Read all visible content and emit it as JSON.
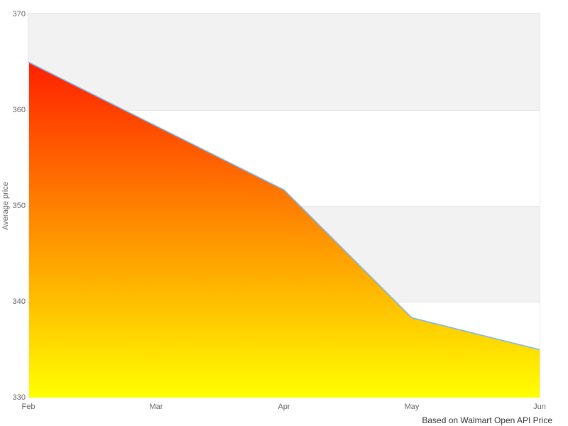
{
  "chart_data": {
    "type": "area",
    "categories": [
      "Feb",
      "Mar",
      "Apr",
      "May",
      "Jun"
    ],
    "series": [
      {
        "name": "Average price",
        "values": [
          365,
          358.33,
          351.67,
          338.33,
          335
        ]
      }
    ],
    "title": "",
    "xlabel": "",
    "ylabel": "Average price",
    "ylim": [
      330,
      370
    ],
    "yticks": [
      330,
      340,
      350,
      360,
      370
    ],
    "grid": "horizontal-bands",
    "legend": "none",
    "caption": "Based on Walmart Open API Price",
    "colors": {
      "line": "#7cb5ec",
      "area_gradient_top": "#ff0000",
      "area_gradient_bottom": "#ffff00",
      "band_fill": "#f2f2f2",
      "gridline": "#e6e6e6",
      "plot_border_top": "#d8d8d8",
      "plot_border_side": "#e6e6e6",
      "tick_label_text": "#666666",
      "axis_title_text": "#666666",
      "caption_text": "#333333"
    }
  }
}
